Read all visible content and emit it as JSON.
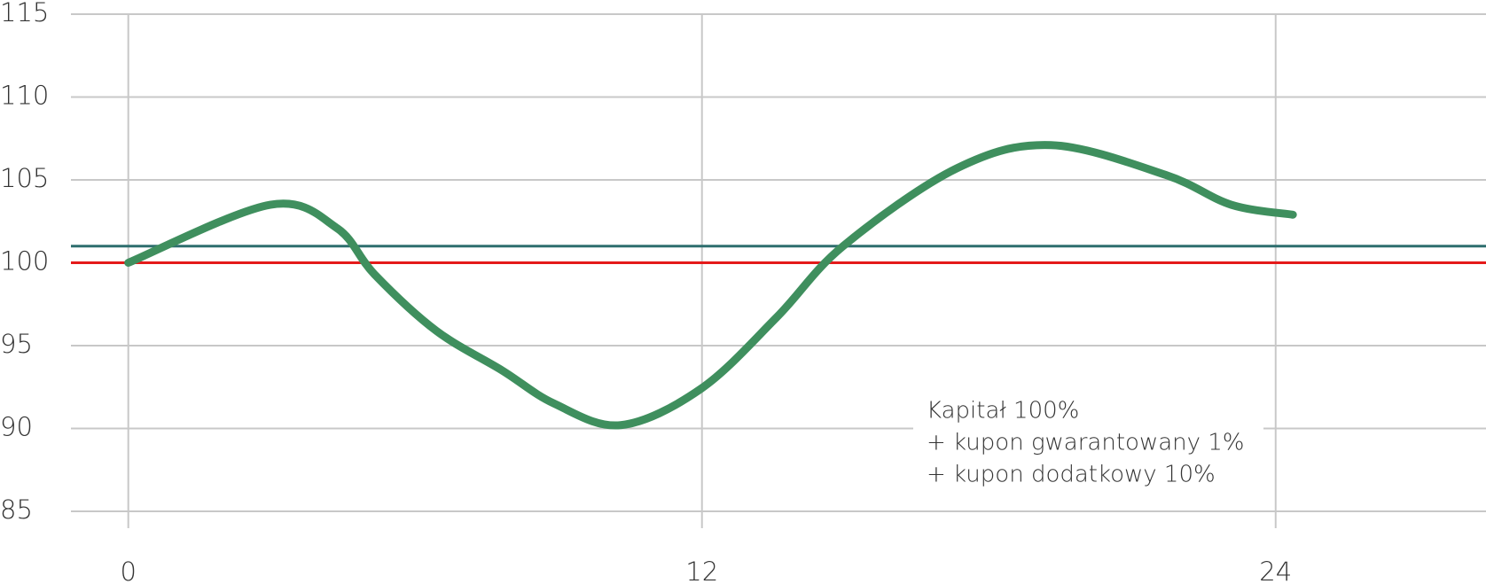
{
  "chart_data": {
    "type": "line",
    "x": [
      0,
      2.97,
      4.36,
      5.15,
      6.44,
      7.82,
      8.91,
      10.3,
      11.98,
      13.56,
      14.95,
      17.33,
      19.3,
      21.7,
      23.07,
      24.36
    ],
    "series": [
      {
        "color": "#3f8f5e",
        "values": [
          100,
          103.5,
          102.1,
          99.3,
          95.9,
          93.5,
          91.5,
          90.2,
          92.4,
          96.7,
          101.0,
          105.7,
          107.1,
          105.3,
          103.5,
          102.9
        ]
      }
    ],
    "reference_lines": [
      {
        "value": 101,
        "color": "#2e6e6e"
      },
      {
        "value": 100,
        "color": "#e41a1a"
      }
    ],
    "xlim": [
      -1.2,
      28.4
    ],
    "ylim": [
      85,
      115
    ],
    "xticks": [
      0,
      12,
      24
    ],
    "yticks": [
      85,
      90,
      95,
      100,
      105,
      110,
      115
    ],
    "grid": true,
    "annotation": [
      "Kapitał 100%",
      "+ kupon gwarantowany 1%",
      "+ kupon dodatkowy 10%"
    ]
  }
}
